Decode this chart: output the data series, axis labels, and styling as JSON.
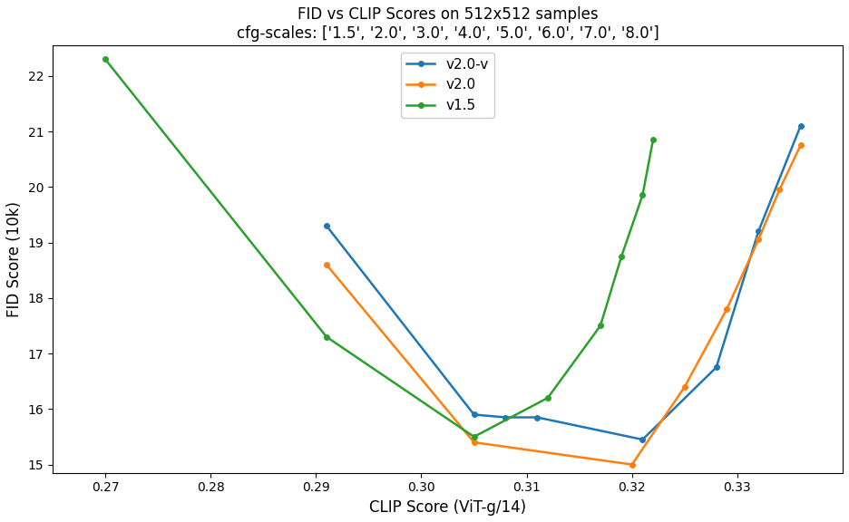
{
  "title_line1": "FID vs CLIP Scores on 512x512 samples",
  "title_line2": "cfg-scales: ['1.5', '2.0', '3.0', '4.0', '5.0', '6.0', '7.0', '8.0']",
  "xlabel": "CLIP Score (ViT-g/14)",
  "ylabel": "FID Score (10k)",
  "series": [
    {
      "label": "v2.0-v",
      "color": "#1f77b4",
      "clip": [
        0.291,
        0.305,
        0.308,
        0.311,
        0.321,
        0.328,
        0.332,
        0.336
      ],
      "fid": [
        19.3,
        15.9,
        15.85,
        15.85,
        15.45,
        16.75,
        19.2,
        21.1
      ]
    },
    {
      "label": "v2.0",
      "color": "#ff7f0e",
      "clip": [
        0.291,
        0.305,
        0.32,
        0.325,
        0.329,
        0.332,
        0.334,
        0.336
      ],
      "fid": [
        18.6,
        15.4,
        15.0,
        16.4,
        17.8,
        19.05,
        19.95,
        20.75
      ]
    },
    {
      "label": "v1.5",
      "color": "#2ca02c",
      "clip": [
        0.27,
        0.291,
        0.305,
        0.312,
        0.317,
        0.319,
        0.321,
        0.322
      ],
      "fid": [
        22.3,
        17.3,
        15.5,
        16.2,
        17.5,
        18.75,
        19.85,
        20.85
      ]
    }
  ],
  "xlim": [
    0.265,
    0.34
  ],
  "ylim": [
    14.85,
    22.55
  ],
  "xticks": [
    0.27,
    0.28,
    0.29,
    0.3,
    0.31,
    0.32,
    0.33
  ],
  "yticks": [
    15,
    16,
    17,
    18,
    19,
    20,
    21,
    22
  ],
  "bg_color": "#ffffff"
}
